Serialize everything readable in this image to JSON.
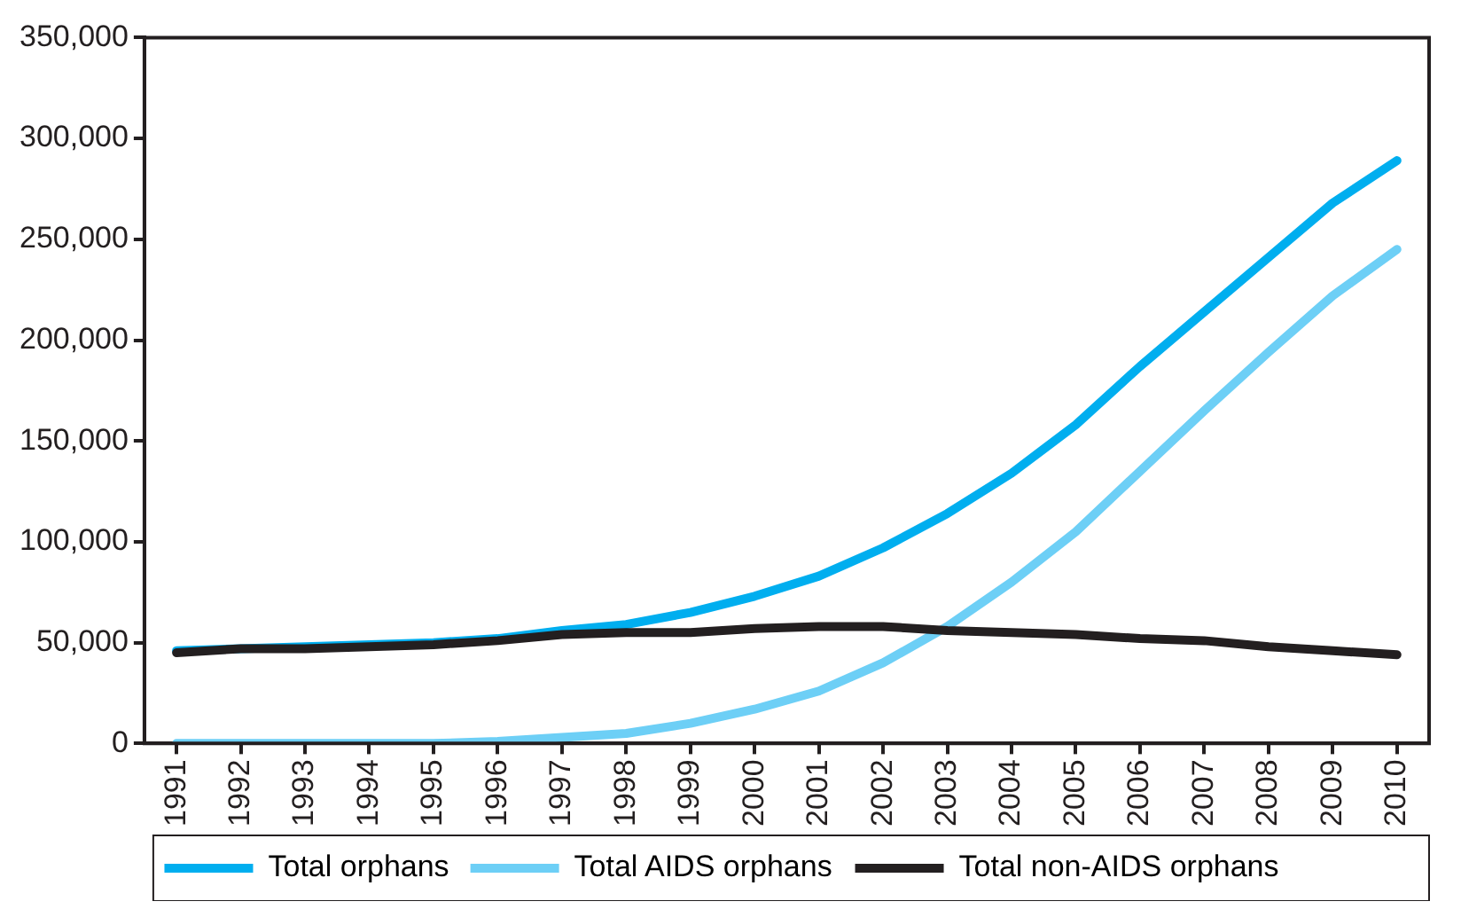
{
  "chart_data": {
    "type": "line",
    "categories": [
      "1991",
      "1992",
      "1993",
      "1994",
      "1995",
      "1996",
      "1997",
      "1998",
      "1999",
      "2000",
      "2001",
      "2002",
      "2003",
      "2004",
      "2005",
      "2006",
      "2007",
      "2008",
      "2009",
      "2010"
    ],
    "series": [
      {
        "name": "Total orphans",
        "color": "#00aeef",
        "values": [
          46000,
          47000,
          48000,
          49000,
          50000,
          52000,
          56000,
          59000,
          65000,
          73000,
          83000,
          97000,
          114000,
          134000,
          158000,
          187000,
          214000,
          241000,
          268000,
          289000
        ]
      },
      {
        "name": "Total AIDS orphans",
        "color": "#6dcff6",
        "values": [
          0,
          0,
          0,
          0,
          0,
          1000,
          3000,
          5000,
          10000,
          17000,
          26000,
          40000,
          58000,
          80000,
          105000,
          135000,
          165000,
          194000,
          222000,
          245000
        ]
      },
      {
        "name": "Total non-AIDS orphans",
        "color": "#231f20",
        "values": [
          45000,
          47000,
          47000,
          48000,
          49000,
          51000,
          54000,
          55000,
          55000,
          57000,
          58000,
          58000,
          56000,
          55000,
          54000,
          52000,
          51000,
          48000,
          46000,
          44000
        ]
      }
    ],
    "ylim": [
      0,
      350000
    ],
    "yticks": [
      0,
      {
        "value": 50000,
        "label": "50,000"
      },
      {
        "value": 100000,
        "label": "100,000"
      },
      {
        "value": 150000,
        "label": "150,000"
      },
      {
        "value": 200000,
        "label": "200,000"
      },
      {
        "value": 250000,
        "label": "250,000"
      },
      {
        "value": 300000,
        "label": "300,000"
      },
      {
        "value": 350000,
        "label": "350,000"
      }
    ],
    "grid": false,
    "legend": "bottom",
    "marker": "none",
    "line_style": "solid"
  }
}
